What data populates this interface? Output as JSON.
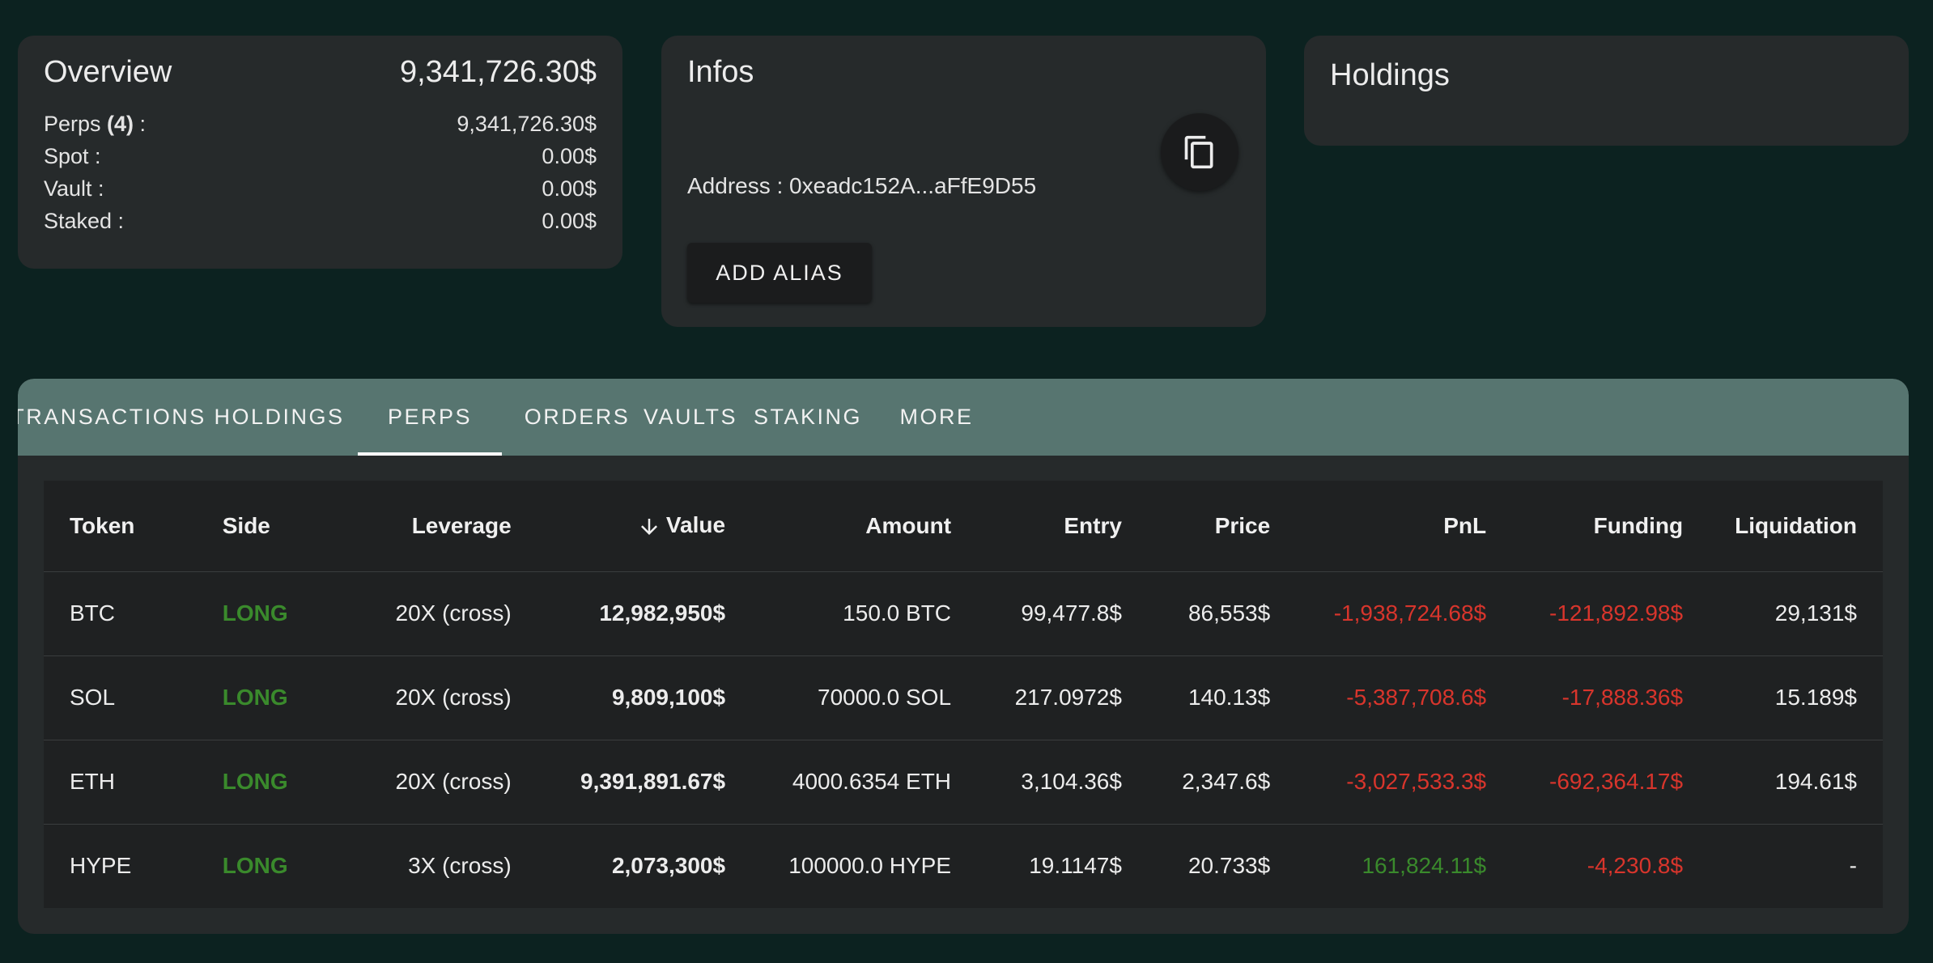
{
  "overview": {
    "title": "Overview",
    "total": "9,341,726.30$",
    "rows": [
      {
        "label": "Perps ",
        "count": "(4)",
        "suffix": " :",
        "value": "9,341,726.30$"
      },
      {
        "label": "Spot :",
        "value": "0.00$"
      },
      {
        "label": "Vault :",
        "value": "0.00$"
      },
      {
        "label": "Staked :",
        "value": "0.00$"
      }
    ]
  },
  "infos": {
    "title": "Infos",
    "address": "Address : 0xeadc152A...aFfE9D55",
    "copy_icon": "copy-icon",
    "alias_button": "ADD ALIAS"
  },
  "holdings": {
    "title": "Holdings"
  },
  "tabs": [
    {
      "label": "TRANSACTIONS",
      "active": false
    },
    {
      "label": "HOLDINGS",
      "active": false
    },
    {
      "label": "PERPS",
      "active": true
    },
    {
      "label": "ORDERS",
      "active": false
    },
    {
      "label": "VAULTS",
      "active": false
    },
    {
      "label": "STAKING",
      "active": false
    },
    {
      "label": "MORE",
      "active": false
    }
  ],
  "table": {
    "headers": [
      "Token",
      "Side",
      "Leverage",
      "Value",
      "Amount",
      "Entry",
      "Price",
      "PnL",
      "Funding",
      "Liquidation"
    ],
    "sort_icon": "arrow-down-icon",
    "rows": [
      [
        "BTC",
        "LONG",
        "20X (cross)",
        "12,982,950$",
        "150.0 BTC",
        "99,477.8$",
        "86,553$",
        "-1,938,724.68$",
        "-121,892.98$",
        "29,131$"
      ],
      [
        "SOL",
        "LONG",
        "20X (cross)",
        "9,809,100$",
        "70000.0 SOL",
        "217.0972$",
        "140.13$",
        "-5,387,708.6$",
        "-17,888.36$",
        "15.189$"
      ],
      [
        "ETH",
        "LONG",
        "20X (cross)",
        "9,391,891.67$",
        "4000.6354 ETH",
        "3,104.36$",
        "2,347.6$",
        "-3,027,533.3$",
        "-692,364.17$",
        "194.61$"
      ],
      [
        "HYPE",
        "LONG",
        "3X (cross)",
        "2,073,300$",
        "100000.0 HYPE",
        "19.1147$",
        "20.733$",
        "161,824.11$",
        "-4,230.8$",
        "-"
      ]
    ]
  },
  "colors": {
    "background": "#0c2220",
    "card": "#262a2b",
    "tabbar": "#577570",
    "long": "#3a8a2c",
    "negative": "#d8352c",
    "positive": "#3a8a2c"
  }
}
